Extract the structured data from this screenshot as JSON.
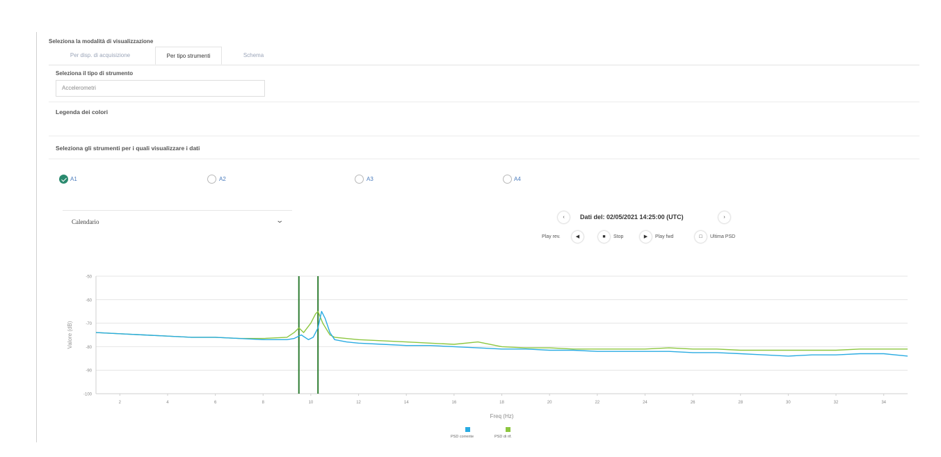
{
  "header": {
    "title": "Seleziona la modalità di visualizzazione"
  },
  "tabs": [
    {
      "label": "Per disp. di acquisizione",
      "active": false
    },
    {
      "label": "Per tipo strumenti",
      "active": true
    },
    {
      "label": "Schema",
      "active": false
    }
  ],
  "instrument_type": {
    "label": "Seleziona il tipo di strumento",
    "value": "Accelerometri"
  },
  "color_legend": {
    "label": "Legenda dei colori"
  },
  "instruments": {
    "label": "Seleziona gli strumenti per i quali visualizzare i dati",
    "items": [
      {
        "label": "A1",
        "checked": true
      },
      {
        "label": "A2",
        "checked": false
      },
      {
        "label": "A3",
        "checked": false
      },
      {
        "label": "A4",
        "checked": false
      }
    ]
  },
  "calendar": {
    "label": "Calendario"
  },
  "playback": {
    "date_label": "Dati del: 02/05/2021 14:25:00 (UTC)",
    "play_rev": "Play rev.",
    "stop": "Stop",
    "play_fwd": "Play fwd",
    "last_psd": "Ultima PSD"
  },
  "icons": {
    "prev": "chevron-left-icon",
    "next": "chevron-right-icon",
    "play_rev": "play-reverse-icon",
    "stop": "stop-icon",
    "play_fwd": "play-forward-icon",
    "last": "last-psd-icon"
  },
  "colors": {
    "accent": "#2a8a6e",
    "series_current": "#29abe2",
    "series_reference": "#8cc63f",
    "marker": "#2f7d32"
  },
  "chart_data": {
    "type": "line",
    "xlabel": "Freq (Hz)",
    "ylabel": "Valore (dB)",
    "xlim": [
      1,
      35
    ],
    "ylim": [
      -100,
      -50
    ],
    "yticks": [
      -50,
      -60,
      -70,
      -80,
      -90,
      -100
    ],
    "ytick_labels": [
      "-50",
      "-60",
      "-70",
      "-80",
      "-90",
      "-100"
    ],
    "xticks": [
      2,
      4,
      6,
      8,
      10,
      12,
      14,
      16,
      18,
      20,
      22,
      24,
      26,
      28,
      30,
      32,
      34
    ],
    "grid": true,
    "legend_position": "bottom-center",
    "vertical_markers": [
      9.5,
      10.3
    ],
    "series": [
      {
        "name": "PSD corrente",
        "color": "#29abe2",
        "x": [
          1,
          2,
          3,
          4,
          5,
          6,
          7,
          8,
          9,
          9.3,
          9.6,
          9.9,
          10.1,
          10.3,
          10.45,
          10.6,
          10.8,
          11,
          11.5,
          12,
          13,
          14,
          15,
          16,
          17,
          18,
          19,
          20,
          21,
          22,
          23,
          24,
          25,
          26,
          27,
          28,
          29,
          30,
          31,
          32,
          33,
          34,
          35
        ],
        "y": [
          -74,
          -74.5,
          -75,
          -75.5,
          -76,
          -76,
          -76.5,
          -77,
          -77,
          -76.5,
          -75,
          -77,
          -76,
          -72,
          -65,
          -68,
          -74,
          -77,
          -78,
          -78.5,
          -79,
          -79.5,
          -79.5,
          -80,
          -80.5,
          -81,
          -81,
          -81.5,
          -81.5,
          -82,
          -82,
          -82,
          -82,
          -82.5,
          -82.5,
          -83,
          -83.5,
          -84,
          -83.5,
          -83.5,
          -83,
          -83,
          -84
        ]
      },
      {
        "name": "PSD di rif.",
        "color": "#8cc63f",
        "x": [
          1,
          2,
          3,
          4,
          5,
          6,
          7,
          8,
          9,
          9.3,
          9.5,
          9.7,
          10,
          10.2,
          10.3,
          10.5,
          10.8,
          11,
          12,
          13,
          14,
          15,
          16,
          17,
          18,
          19,
          20,
          21,
          22,
          23,
          24,
          25,
          26,
          27,
          28,
          29,
          30,
          31,
          32,
          33,
          34,
          35
        ],
        "y": [
          -74,
          -74.5,
          -75,
          -75.5,
          -76,
          -76,
          -76.5,
          -76.5,
          -76,
          -74,
          -72,
          -74,
          -70,
          -66,
          -65,
          -70,
          -75,
          -76,
          -77,
          -77.5,
          -78,
          -78.5,
          -79,
          -78,
          -80,
          -80.5,
          -80.5,
          -81,
          -81,
          -81,
          -81,
          -80.5,
          -81,
          -81,
          -81.5,
          -81.5,
          -81.5,
          -81.5,
          -81.5,
          -81,
          -81,
          -81
        ]
      }
    ]
  }
}
